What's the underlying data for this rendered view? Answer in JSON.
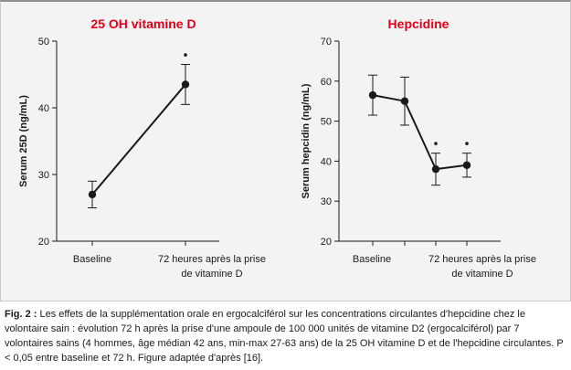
{
  "chart_data": [
    {
      "type": "line",
      "title": "25 OH vitamine D",
      "xlabel": "",
      "ylabel": "Serum 25D (ng/mL)",
      "categories": [
        "Baseline",
        "72 heures après la prise de vitamine D"
      ],
      "category_lines": [
        [
          "Baseline"
        ],
        [
          "72 heures après la prise",
          "de vitamine D"
        ]
      ],
      "x": [
        1,
        2
      ],
      "values": [
        27,
        43.5
      ],
      "error_low": [
        25,
        40.5
      ],
      "error_high": [
        29,
        46.5
      ],
      "significance": [
        "",
        "•"
      ],
      "ylim": [
        20,
        50
      ],
      "yticks": [
        20,
        30,
        40,
        50
      ],
      "grid": false
    },
    {
      "type": "line",
      "title": "Hepcidine",
      "xlabel": "",
      "ylabel": "Serum hepcidin (ng/mL)",
      "categories": [
        "Baseline",
        "",
        "",
        "72 heures après la prise de vitamine D"
      ],
      "category_lines": [
        [
          "Baseline"
        ],
        [],
        [],
        [
          "72 heures après la prise",
          "de vitamine D"
        ]
      ],
      "x": [
        1,
        2,
        3,
        4
      ],
      "values": [
        56.5,
        55,
        38,
        39
      ],
      "error_low": [
        51.5,
        49,
        34,
        36
      ],
      "error_high": [
        61.5,
        61,
        42,
        42
      ],
      "significance": [
        "",
        "",
        "•",
        "•"
      ],
      "ylim": [
        20,
        70
      ],
      "yticks": [
        20,
        30,
        40,
        50,
        60,
        70
      ],
      "grid": false
    }
  ],
  "caption": {
    "label": "Fig. 2 :",
    "text": "Les effets de la supplémentation orale en ergocalciférol sur les concentrations circulantes d'hepcidine chez le volontaire sain : évolution 72 h après la prise d'une ampoule de 100 000 unités de vitamine D2 (ergo­calciférol) par 7 volontaires sains (4 hommes, âge médian 42 ans, min-max 27-63 ans) de la 25 OH vitamine D et de l'hepcidine circulantes. P < 0,05 entre baseline et 72 h. Figure adaptée d'après [16]."
  },
  "colors": {
    "title": "#e1001a",
    "panel_background": "#f3f3f3",
    "ink": "#1a1a1a"
  }
}
